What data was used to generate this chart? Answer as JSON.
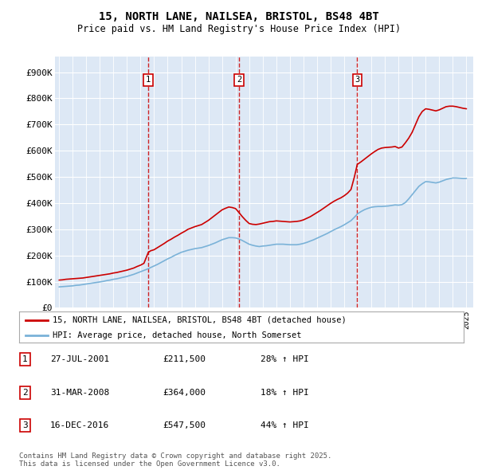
{
  "title": "15, NORTH LANE, NAILSEA, BRISTOL, BS48 4BT",
  "subtitle": "Price paid vs. HM Land Registry's House Price Index (HPI)",
  "ylabel_ticks": [
    "£0",
    "£100K",
    "£200K",
    "£300K",
    "£400K",
    "£500K",
    "£600K",
    "£700K",
    "£800K",
    "£900K"
  ],
  "ytick_values": [
    0,
    100000,
    200000,
    300000,
    400000,
    500000,
    600000,
    700000,
    800000,
    900000
  ],
  "ylim": [
    0,
    960000
  ],
  "xlim_start": 1994.7,
  "xlim_end": 2025.5,
  "plot_bg": "#dde8f5",
  "grid_color": "#ffffff",
  "red_color": "#cc0000",
  "blue_color": "#7ab2d8",
  "sale_dates": [
    2001.57,
    2008.25,
    2016.96
  ],
  "sale_numbers": [
    "1",
    "2",
    "3"
  ],
  "sale_prices": [
    211500,
    364000,
    547500
  ],
  "sale_labels": [
    "27-JUL-2001",
    "31-MAR-2008",
    "16-DEC-2016"
  ],
  "sale_pct": [
    "28%",
    "18%",
    "44%"
  ],
  "legend_label_red": "15, NORTH LANE, NAILSEA, BRISTOL, BS48 4BT (detached house)",
  "legend_label_blue": "HPI: Average price, detached house, North Somerset",
  "table_row1": [
    "1",
    "27-JUL-2001",
    "£211,500",
    "28% ↑ HPI"
  ],
  "table_row2": [
    "2",
    "31-MAR-2008",
    "£364,000",
    "18% ↑ HPI"
  ],
  "table_row3": [
    "3",
    "16-DEC-2016",
    "£547,500",
    "44% ↑ HPI"
  ],
  "footer": "Contains HM Land Registry data © Crown copyright and database right 2025.\nThis data is licensed under the Open Government Licence v3.0.",
  "red_line_x": [
    1995.0,
    1995.25,
    1995.5,
    1995.75,
    1996.0,
    1996.25,
    1996.5,
    1996.75,
    1997.0,
    1997.25,
    1997.5,
    1997.75,
    1998.0,
    1998.25,
    1998.5,
    1998.75,
    1999.0,
    1999.25,
    1999.5,
    1999.75,
    2000.0,
    2000.25,
    2000.5,
    2000.75,
    2001.0,
    2001.25,
    2001.57,
    2001.75,
    2002.0,
    2002.25,
    2002.5,
    2002.75,
    2003.0,
    2003.25,
    2003.5,
    2003.75,
    2004.0,
    2004.25,
    2004.5,
    2004.75,
    2005.0,
    2005.25,
    2005.5,
    2005.75,
    2006.0,
    2006.25,
    2006.5,
    2006.75,
    2007.0,
    2007.25,
    2007.5,
    2007.75,
    2008.0,
    2008.25,
    2008.5,
    2008.75,
    2009.0,
    2009.25,
    2009.5,
    2009.75,
    2010.0,
    2010.25,
    2010.5,
    2010.75,
    2011.0,
    2011.25,
    2011.5,
    2011.75,
    2012.0,
    2012.25,
    2012.5,
    2012.75,
    2013.0,
    2013.25,
    2013.5,
    2013.75,
    2014.0,
    2014.25,
    2014.5,
    2014.75,
    2015.0,
    2015.25,
    2015.5,
    2015.75,
    2016.0,
    2016.25,
    2016.5,
    2016.75,
    2016.96,
    2017.25,
    2017.5,
    2017.75,
    2018.0,
    2018.25,
    2018.5,
    2018.75,
    2019.0,
    2019.25,
    2019.5,
    2019.75,
    2020.0,
    2020.25,
    2020.5,
    2020.75,
    2021.0,
    2021.25,
    2021.5,
    2021.75,
    2022.0,
    2022.25,
    2022.5,
    2022.75,
    2023.0,
    2023.25,
    2023.5,
    2023.75,
    2024.0,
    2024.25,
    2024.5,
    2024.75,
    2025.0
  ],
  "red_line_y": [
    106000,
    107000,
    109000,
    110000,
    111000,
    112000,
    113000,
    114000,
    116000,
    118000,
    120000,
    122000,
    124000,
    126000,
    128000,
    130000,
    133000,
    135000,
    138000,
    141000,
    144000,
    148000,
    152000,
    158000,
    163000,
    170000,
    211500,
    218000,
    222000,
    230000,
    238000,
    246000,
    255000,
    262000,
    270000,
    277000,
    285000,
    292000,
    300000,
    305000,
    310000,
    314000,
    318000,
    326000,
    334000,
    344000,
    354000,
    364000,
    374000,
    380000,
    385000,
    383000,
    379000,
    364000,
    348000,
    334000,
    322000,
    319000,
    318000,
    320000,
    323000,
    326000,
    329000,
    330000,
    332000,
    331000,
    330000,
    329000,
    328000,
    329000,
    330000,
    332000,
    336000,
    342000,
    348000,
    356000,
    364000,
    372000,
    381000,
    390000,
    399000,
    407000,
    414000,
    420000,
    428000,
    438000,
    452000,
    500000,
    547500,
    558000,
    568000,
    578000,
    588000,
    597000,
    605000,
    610000,
    612000,
    613000,
    614000,
    616000,
    610000,
    614000,
    630000,
    648000,
    670000,
    700000,
    730000,
    750000,
    760000,
    758000,
    755000,
    752000,
    756000,
    762000,
    768000,
    770000,
    770000,
    768000,
    765000,
    762000,
    760000
  ],
  "blue_line_x": [
    1995.0,
    1995.25,
    1995.5,
    1995.75,
    1996.0,
    1996.25,
    1996.5,
    1996.75,
    1997.0,
    1997.25,
    1997.5,
    1997.75,
    1998.0,
    1998.25,
    1998.5,
    1998.75,
    1999.0,
    1999.25,
    1999.5,
    1999.75,
    2000.0,
    2000.25,
    2000.5,
    2000.75,
    2001.0,
    2001.25,
    2001.5,
    2001.75,
    2002.0,
    2002.25,
    2002.5,
    2002.75,
    2003.0,
    2003.25,
    2003.5,
    2003.75,
    2004.0,
    2004.25,
    2004.5,
    2004.75,
    2005.0,
    2005.25,
    2005.5,
    2005.75,
    2006.0,
    2006.25,
    2006.5,
    2006.75,
    2007.0,
    2007.25,
    2007.5,
    2007.75,
    2008.0,
    2008.25,
    2008.5,
    2008.75,
    2009.0,
    2009.25,
    2009.5,
    2009.75,
    2010.0,
    2010.25,
    2010.5,
    2010.75,
    2011.0,
    2011.25,
    2011.5,
    2011.75,
    2012.0,
    2012.25,
    2012.5,
    2012.75,
    2013.0,
    2013.25,
    2013.5,
    2013.75,
    2014.0,
    2014.25,
    2014.5,
    2014.75,
    2015.0,
    2015.25,
    2015.5,
    2015.75,
    2016.0,
    2016.25,
    2016.5,
    2016.75,
    2017.0,
    2017.25,
    2017.5,
    2017.75,
    2018.0,
    2018.25,
    2018.5,
    2018.75,
    2019.0,
    2019.25,
    2019.5,
    2019.75,
    2020.0,
    2020.25,
    2020.5,
    2020.75,
    2021.0,
    2021.25,
    2021.5,
    2021.75,
    2022.0,
    2022.25,
    2022.5,
    2022.75,
    2023.0,
    2023.25,
    2023.5,
    2023.75,
    2024.0,
    2024.25,
    2024.5,
    2024.75,
    2025.0
  ],
  "blue_line_y": [
    80000,
    81000,
    82000,
    83000,
    84000,
    86000,
    87000,
    89000,
    91000,
    93000,
    95000,
    97000,
    99000,
    101000,
    104000,
    106000,
    109000,
    111000,
    114000,
    117000,
    120000,
    124000,
    128000,
    133000,
    138000,
    143000,
    148000,
    154000,
    160000,
    166000,
    173000,
    180000,
    187000,
    193000,
    200000,
    206000,
    212000,
    216000,
    220000,
    223000,
    226000,
    228000,
    230000,
    234000,
    238000,
    243000,
    248000,
    254000,
    260000,
    264000,
    268000,
    268000,
    267000,
    263000,
    257000,
    250000,
    243000,
    239000,
    236000,
    234000,
    236000,
    237000,
    239000,
    241000,
    243000,
    243000,
    243000,
    242000,
    241000,
    241000,
    241000,
    243000,
    246000,
    250000,
    255000,
    260000,
    266000,
    272000,
    278000,
    284000,
    291000,
    298000,
    304000,
    310000,
    317000,
    325000,
    333000,
    346000,
    360000,
    368000,
    375000,
    380000,
    384000,
    386000,
    387000,
    387000,
    388000,
    389000,
    391000,
    393000,
    392000,
    394000,
    402000,
    416000,
    432000,
    448000,
    464000,
    474000,
    482000,
    481000,
    479000,
    477000,
    480000,
    485000,
    490000,
    493000,
    496000,
    496000,
    495000,
    494000,
    494000
  ]
}
